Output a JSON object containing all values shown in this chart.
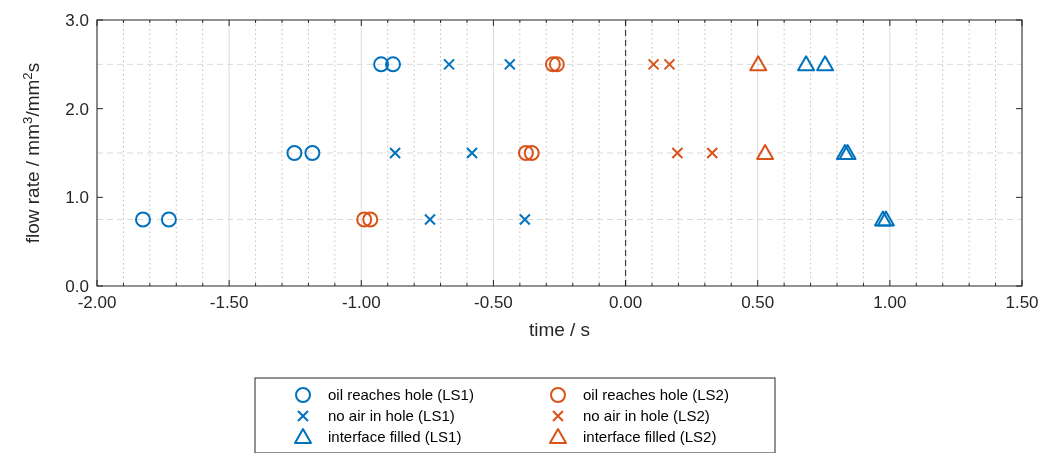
{
  "chart_data": {
    "type": "scatter",
    "xlabel": "time / s",
    "ylabel": "flow rate / mm$^{3}$/mm$^{2}$s",
    "xlim": [
      -2,
      1.5
    ],
    "ylim": [
      0,
      3
    ],
    "xticks": [
      {
        "value": -2,
        "label": "-2.00"
      },
      {
        "value": -1.9,
        "label": null
      },
      {
        "value": -1.8,
        "label": null
      },
      {
        "value": -1.7,
        "label": null
      },
      {
        "value": -1.6,
        "label": null
      },
      {
        "value": -1.5,
        "label": "-1.50"
      },
      {
        "value": -1.4,
        "label": null
      },
      {
        "value": -1.3,
        "label": null
      },
      {
        "value": -1.2,
        "label": null
      },
      {
        "value": -1.1,
        "label": null
      },
      {
        "value": -1,
        "label": "-1.00"
      },
      {
        "value": -0.9,
        "label": null
      },
      {
        "value": -0.8,
        "label": null
      },
      {
        "value": -0.7,
        "label": null
      },
      {
        "value": -0.6,
        "label": null
      },
      {
        "value": -0.5,
        "label": "-0.50"
      },
      {
        "value": -0.4,
        "label": null
      },
      {
        "value": -0.3,
        "label": null
      },
      {
        "value": -0.2,
        "label": null
      },
      {
        "value": -0.1,
        "label": null
      },
      {
        "value": 0,
        "label": "0.00"
      },
      {
        "value": 0.1,
        "label": null
      },
      {
        "value": 0.2,
        "label": null
      },
      {
        "value": 0.3,
        "label": null
      },
      {
        "value": 0.4,
        "label": null
      },
      {
        "value": 0.5,
        "label": "0.50"
      },
      {
        "value": 0.6,
        "label": null
      },
      {
        "value": 0.7,
        "label": null
      },
      {
        "value": 0.8,
        "label": null
      },
      {
        "value": 0.9,
        "label": null
      },
      {
        "value": 1,
        "label": "1.00"
      },
      {
        "value": 1.1,
        "label": null
      },
      {
        "value": 1.2,
        "label": null
      },
      {
        "value": 1.3,
        "label": null
      },
      {
        "value": 1.4,
        "label": null
      },
      {
        "value": 1.5,
        "label": "1.50"
      }
    ],
    "yticks": [
      {
        "value": 0,
        "label": "0.0"
      },
      {
        "value": 1,
        "label": "1.0"
      },
      {
        "value": 2,
        "label": "2.0"
      },
      {
        "value": 3,
        "label": "3.0"
      }
    ],
    "grid": "x",
    "legend": "bottom",
    "ref_lines": [
      {
        "axis": "x",
        "value": 0,
        "color": "#404040",
        "line_style": "dashed"
      },
      {
        "axis": "y",
        "value": 0.75,
        "color": "#d9d9d9",
        "line_style": "dashed"
      },
      {
        "axis": "y",
        "value": 1.5,
        "color": "#d9d9d9",
        "line_style": "dashed"
      },
      {
        "axis": "y",
        "value": 2.5,
        "color": "#d9d9d9",
        "line_style": "dashed"
      }
    ],
    "series": [
      {
        "name": "oil reaches hole (LS1)",
        "color": "#0072bd",
        "marker": "circle",
        "x": [
          -0.925,
          -0.88,
          -1.253,
          -1.185,
          -1.826,
          -1.728
        ],
        "values": [
          2.5,
          2.5,
          1.5,
          1.5,
          0.75,
          0.75
        ]
      },
      {
        "name": "oil reaches hole (LS2)",
        "color": "#d95319",
        "marker": "circle",
        "x": [
          -0.275,
          -0.26,
          -0.377,
          -0.355,
          -0.989,
          -0.966
        ],
        "values": [
          2.5,
          2.5,
          1.5,
          1.5,
          0.75,
          0.75
        ]
      },
      {
        "name": "no air in hole (LS1)",
        "color": "#0072bd",
        "marker": "cross",
        "x": [
          -0.668,
          -0.438,
          -0.872,
          -0.581,
          -0.74,
          -0.381
        ],
        "values": [
          2.5,
          2.5,
          1.5,
          1.5,
          0.75,
          0.75
        ]
      },
      {
        "name": "no air in hole (LS2)",
        "color": "#d95319",
        "marker": "cross",
        "x": [
          0.106,
          0.166,
          0.196,
          0.328
        ],
        "values": [
          2.5,
          2.5,
          1.5,
          1.5
        ]
      },
      {
        "name": "interface filled (LS1)",
        "color": "#0072bd",
        "marker": "triangle",
        "x": [
          0.683,
          0.755,
          0.83,
          0.84,
          0.974,
          0.985
        ],
        "values": [
          2.5,
          2.5,
          1.5,
          1.5,
          0.75,
          0.75
        ]
      },
      {
        "name": "interface filled (LS2)",
        "color": "#d95319",
        "marker": "triangle",
        "x": [
          0.502,
          0.528
        ],
        "values": [
          2.5,
          1.5
        ]
      }
    ]
  }
}
